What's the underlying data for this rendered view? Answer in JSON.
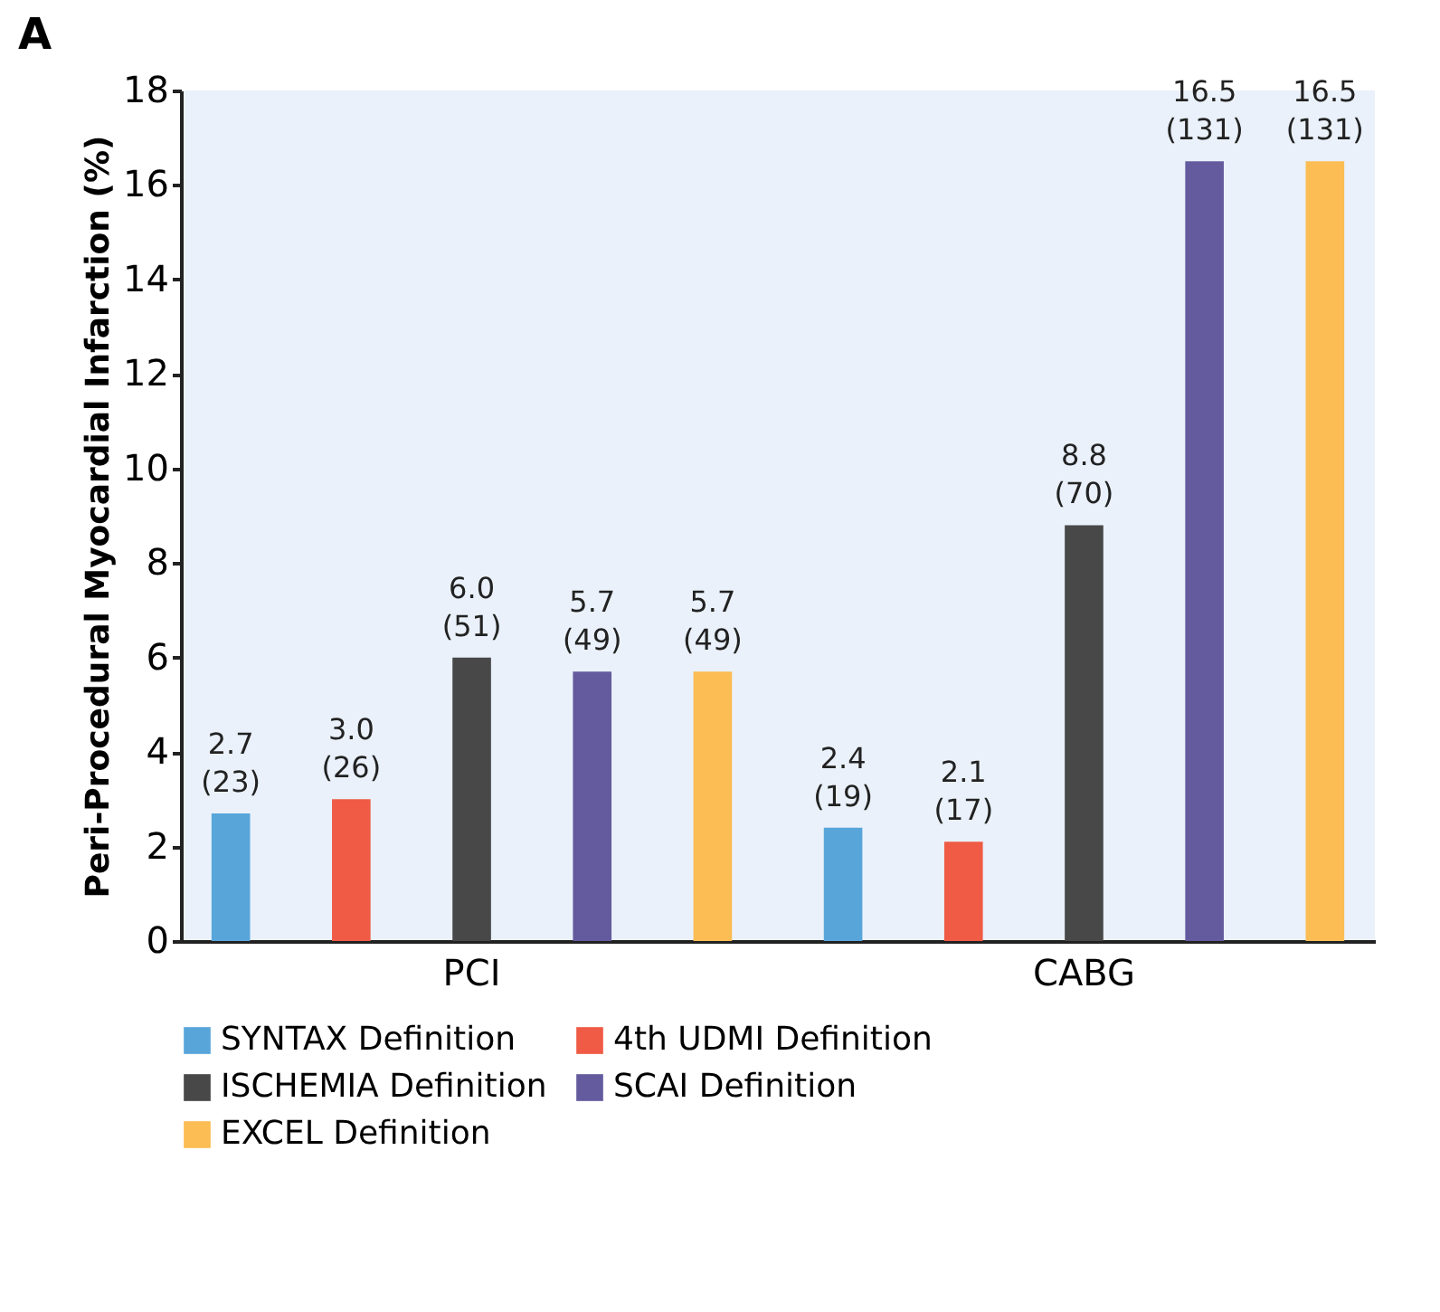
{
  "chart_data": {
    "type": "bar",
    "title": "A",
    "ylabel": "Peri-Procedural Myocardial Infarction (%)",
    "categories": [
      "PCI",
      "CABG"
    ],
    "series": [
      {
        "name": "SYNTAX Definition",
        "color": "#58a5da",
        "values": [
          2.7,
          2.4
        ],
        "value_labels": [
          "2.7\n(23)",
          "2.4\n(19)"
        ]
      },
      {
        "name": "4th UDMI Definition",
        "color": "#ef5b45",
        "values": [
          3.0,
          2.1
        ],
        "value_labels": [
          "3.0\n(26)",
          "2.1\n(17)"
        ]
      },
      {
        "name": "ISCHEMIA Definition",
        "color": "#484848",
        "values": [
          6.0,
          8.8
        ],
        "value_labels": [
          "6.0\n(51)",
          "8.8\n(70)"
        ]
      },
      {
        "name": "SCAI Definition",
        "color": "#635b9e",
        "values": [
          5.7,
          16.5
        ],
        "value_labels": [
          "5.7\n(49)",
          "16.5\n(131)"
        ]
      },
      {
        "name": "EXCEL Definition",
        "color": "#fbbd54",
        "values": [
          5.7,
          16.5
        ],
        "value_labels": [
          "5.7\n(49)",
          "16.5\n(131)"
        ]
      }
    ],
    "ylim": [
      0,
      18
    ],
    "yticks": [
      0,
      2,
      4,
      6,
      8,
      10,
      12,
      14,
      16,
      18
    ],
    "grid": false,
    "legend": "bottom"
  }
}
